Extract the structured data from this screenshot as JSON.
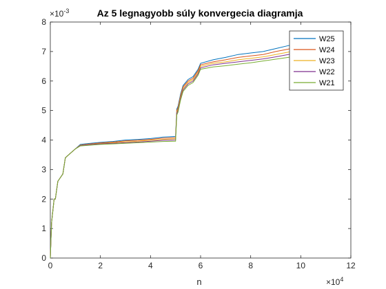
{
  "chart_data": {
    "type": "line",
    "title": "Az 5 legnagyobb súly konvergecia diagramja",
    "xlabel": "n",
    "ylabel": "",
    "x_exponent_label": "×10",
    "x_exponent": "4",
    "y_exponent_label": "×10",
    "y_exponent": "-3",
    "xlim": [
      0,
      12
    ],
    "ylim": [
      0,
      8
    ],
    "x_ticks": [
      "0",
      "2",
      "4",
      "6",
      "8",
      "10",
      "12"
    ],
    "y_ticks": [
      "0",
      "1",
      "2",
      "3",
      "4",
      "5",
      "6",
      "7",
      "8"
    ],
    "grid": false,
    "legend_location": "top-right",
    "x": [
      0,
      0.05,
      0.15,
      0.2,
      0.3,
      0.5,
      0.6,
      0.8,
      1.0,
      1.2,
      1.5,
      2.0,
      2.5,
      3.0,
      3.5,
      4.0,
      4.5,
      5.0,
      5.05,
      5.1,
      5.2,
      5.3,
      5.4,
      5.5,
      5.7,
      5.9,
      6.0,
      6.5,
      7.0,
      7.5,
      8.0,
      8.5,
      9.0,
      9.5,
      10.0
    ],
    "series": [
      {
        "name": "W25",
        "color": "#0072BD",
        "values": [
          0,
          1.2,
          2.0,
          2.0,
          2.6,
          2.85,
          3.4,
          3.55,
          3.7,
          3.85,
          3.88,
          3.92,
          3.95,
          4.0,
          4.02,
          4.05,
          4.1,
          4.12,
          5.05,
          5.15,
          5.55,
          5.85,
          5.95,
          6.05,
          6.15,
          6.4,
          6.6,
          6.72,
          6.8,
          6.9,
          6.95,
          7.0,
          7.1,
          7.2,
          7.3
        ]
      },
      {
        "name": "W24",
        "color": "#D95319",
        "values": [
          0,
          1.2,
          2.0,
          2.0,
          2.6,
          2.85,
          3.4,
          3.55,
          3.7,
          3.83,
          3.86,
          3.9,
          3.93,
          3.97,
          3.99,
          4.02,
          4.06,
          4.08,
          5.0,
          5.1,
          5.5,
          5.8,
          5.9,
          6.0,
          6.1,
          6.35,
          6.55,
          6.65,
          6.72,
          6.8,
          6.85,
          6.9,
          7.0,
          7.08,
          7.18
        ]
      },
      {
        "name": "W23",
        "color": "#EDB120",
        "values": [
          0,
          1.2,
          2.0,
          2.0,
          2.6,
          2.85,
          3.4,
          3.55,
          3.7,
          3.82,
          3.85,
          3.88,
          3.91,
          3.94,
          3.96,
          3.99,
          4.02,
          4.04,
          4.95,
          5.05,
          5.45,
          5.75,
          5.85,
          5.95,
          6.05,
          6.3,
          6.5,
          6.6,
          6.65,
          6.72,
          6.77,
          6.82,
          6.9,
          6.98,
          7.06
        ]
      },
      {
        "name": "W22",
        "color": "#7E2F8E",
        "values": [
          0,
          1.2,
          2.0,
          2.0,
          2.6,
          2.85,
          3.4,
          3.55,
          3.7,
          3.81,
          3.84,
          3.87,
          3.89,
          3.91,
          3.93,
          3.96,
          3.99,
          4.0,
          4.9,
          5.0,
          5.4,
          5.7,
          5.8,
          5.9,
          6.0,
          6.25,
          6.45,
          6.55,
          6.6,
          6.65,
          6.7,
          6.75,
          6.82,
          6.9,
          6.97
        ]
      },
      {
        "name": "W21",
        "color": "#77AC30",
        "values": [
          0,
          1.2,
          2.0,
          2.0,
          2.6,
          2.85,
          3.4,
          3.55,
          3.7,
          3.8,
          3.82,
          3.85,
          3.87,
          3.89,
          3.91,
          3.93,
          3.95,
          3.96,
          4.85,
          4.95,
          5.35,
          5.65,
          5.75,
          5.85,
          5.95,
          6.2,
          6.4,
          6.48,
          6.52,
          6.57,
          6.62,
          6.68,
          6.74,
          6.8,
          6.88
        ]
      }
    ]
  }
}
